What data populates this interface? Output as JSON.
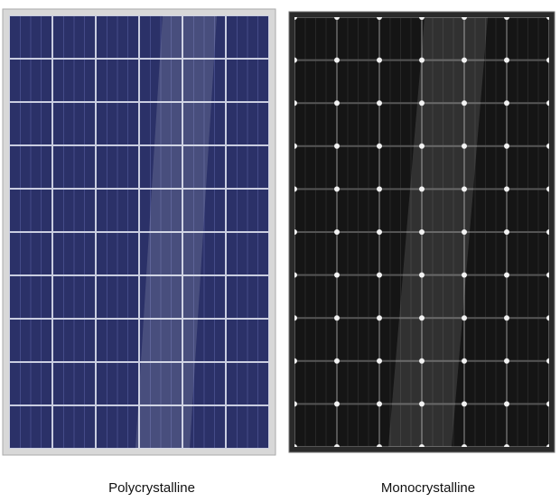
{
  "panels": [
    {
      "label": "Polycrystalline"
    },
    {
      "label": "Monocrystalline"
    }
  ]
}
